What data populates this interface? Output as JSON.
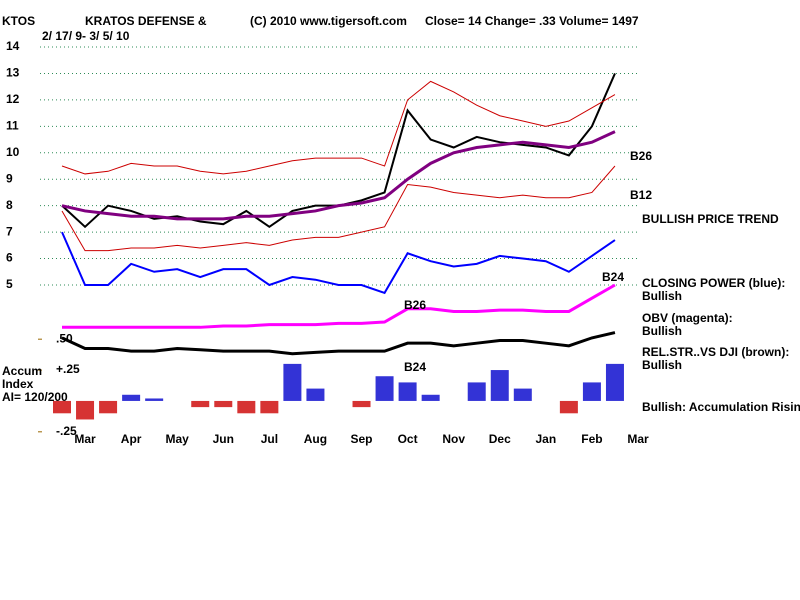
{
  "chart_data": {
    "type": "line",
    "header": {
      "symbol": "KTOS",
      "company": "KRATOS DEFENSE &",
      "copyright": "(C) 2010 www.tigersoft.com",
      "quote": "Close=  14  Change= .33 Volume= 1497",
      "dates": "2/ 17/ 9- 3/ 5/ 10"
    },
    "categories": [
      null,
      "Mar",
      null,
      "Apr",
      null,
      "May",
      null,
      "Jun",
      null,
      "Jul",
      null,
      "Aug",
      null,
      "Sep",
      null,
      "Oct",
      null,
      "Nov",
      null,
      "Dec",
      null,
      "Jan",
      null,
      "Feb",
      null,
      "Mar"
    ],
    "series": [
      {
        "name": "Close",
        "color": "#000000",
        "width": 2,
        "values": [
          8.0,
          7.2,
          8.0,
          7.8,
          7.5,
          7.6,
          7.4,
          7.3,
          7.8,
          7.2,
          7.8,
          8.0,
          8.0,
          8.2,
          8.5,
          11.6,
          10.5,
          10.2,
          10.6,
          10.4,
          10.3,
          10.2,
          9.9,
          11.0,
          13.0,
          null
        ]
      },
      {
        "name": "Moving Average",
        "color": "#800080",
        "width": 3,
        "values": [
          8.0,
          7.8,
          7.7,
          7.6,
          7.6,
          7.5,
          7.5,
          7.5,
          7.6,
          7.6,
          7.7,
          7.8,
          8.0,
          8.1,
          8.3,
          9.0,
          9.6,
          10.0,
          10.2,
          10.3,
          10.4,
          10.3,
          10.2,
          10.4,
          10.8,
          null
        ]
      },
      {
        "name": "Upper Band",
        "color": "#cc0000",
        "width": 1,
        "values": [
          9.5,
          9.2,
          9.3,
          9.6,
          9.5,
          9.5,
          9.3,
          9.2,
          9.3,
          9.5,
          9.7,
          9.8,
          9.8,
          9.8,
          9.5,
          12.0,
          12.7,
          12.3,
          11.8,
          11.4,
          11.2,
          11.0,
          11.2,
          11.7,
          12.2,
          null
        ]
      },
      {
        "name": "Lower Band",
        "color": "#cc0000",
        "width": 1,
        "values": [
          7.8,
          6.3,
          6.3,
          6.4,
          6.4,
          6.5,
          6.4,
          6.5,
          6.6,
          6.5,
          6.7,
          6.8,
          6.8,
          7.0,
          7.2,
          8.8,
          8.7,
          8.5,
          8.4,
          8.3,
          8.4,
          8.3,
          8.3,
          8.5,
          9.5,
          null
        ]
      },
      {
        "name": "Closing Power",
        "color": "#0000ff",
        "width": 2,
        "values": [
          7.0,
          5.0,
          5.0,
          5.8,
          5.5,
          5.6,
          5.3,
          5.6,
          5.6,
          5.0,
          5.3,
          5.2,
          5.0,
          5.0,
          4.7,
          6.2,
          5.9,
          5.7,
          5.8,
          6.1,
          6.0,
          5.9,
          5.5,
          6.1,
          6.7,
          null
        ]
      },
      {
        "name": "OBV",
        "color": "#ff00ff",
        "width": 3,
        "values": [
          3.4,
          3.4,
          3.4,
          3.4,
          3.4,
          3.4,
          3.4,
          3.45,
          3.45,
          3.5,
          3.5,
          3.5,
          3.55,
          3.55,
          3.6,
          4.1,
          4.1,
          4.0,
          4.0,
          4.05,
          4.05,
          4.0,
          4.0,
          4.5,
          5.0,
          null
        ]
      },
      {
        "name": "Relative Strength",
        "color": "#000000",
        "width": 3,
        "values": [
          3.0,
          2.6,
          2.6,
          2.5,
          2.5,
          2.6,
          2.55,
          2.5,
          2.5,
          2.5,
          2.4,
          2.45,
          2.5,
          2.5,
          2.5,
          2.8,
          2.8,
          2.7,
          2.8,
          2.9,
          2.9,
          2.8,
          2.7,
          3.0,
          3.2,
          null
        ]
      },
      {
        "name": "Accum Index",
        "type": "bar",
        "axis": "y2",
        "positive_color": "#0000cc",
        "negative_color": "#cc0000",
        "values": [
          -0.1,
          -0.15,
          -0.1,
          0.05,
          0.02,
          0.0,
          -0.05,
          -0.05,
          -0.1,
          -0.1,
          0.3,
          0.1,
          0.0,
          -0.05,
          0.2,
          0.15,
          0.05,
          0.0,
          0.15,
          0.25,
          0.1,
          0.0,
          -0.1,
          0.15,
          0.3,
          null
        ]
      }
    ],
    "ylim": [
      5,
      14
    ],
    "yticks": [
      5,
      6,
      7,
      8,
      9,
      10,
      11,
      12,
      13,
      14
    ],
    "y2lim": [
      -0.3,
      0.55
    ],
    "y2ticks": [
      {
        "value": 0.5,
        "label": ".50"
      },
      {
        "value": 0.25,
        "label": "+.25"
      },
      {
        "value": -0.25,
        "label": "-.25"
      }
    ],
    "grid": true,
    "annotations": [
      "B26",
      "B12",
      "BULLISH PRICE TREND",
      "B24",
      "CLOSING POWER (blue):",
      "Bullish",
      "OBV (magenta):",
      "Bullish",
      "REL.STR..VS DJI (brown):",
      "Bullish",
      "Bullish: Accumulation Rising",
      "Accum",
      "Index",
      "AI= 120/200",
      "B26",
      "B24"
    ]
  }
}
